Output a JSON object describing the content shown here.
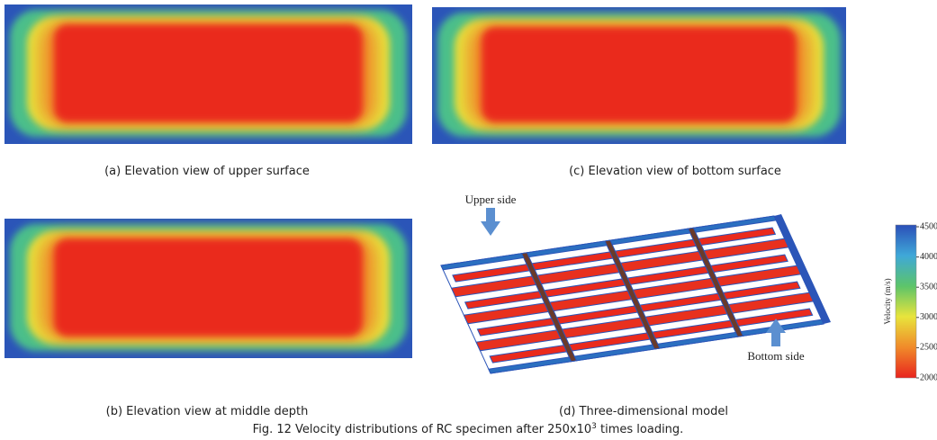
{
  "panels": [
    {
      "caption": "(a) Elevation view of upper surface"
    },
    {
      "caption": "(c) Elevation view of bottom surface"
    },
    {
      "caption": "(b) Elevation view at middle depth"
    },
    {
      "caption": "(d) Three-dimensional model"
    }
  ],
  "model_labels": {
    "upper": "Upper side",
    "bottom": "Bottom side"
  },
  "colorbar": {
    "label": "Velocity (m/s)",
    "ticks": [
      4500,
      4000,
      3500,
      3000,
      2500,
      2000
    ]
  },
  "figure_caption": {
    "main": "Fig. 12 Velocity distributions of RC specimen after 250x10",
    "superscript": "3",
    "tail": " times loading."
  }
}
